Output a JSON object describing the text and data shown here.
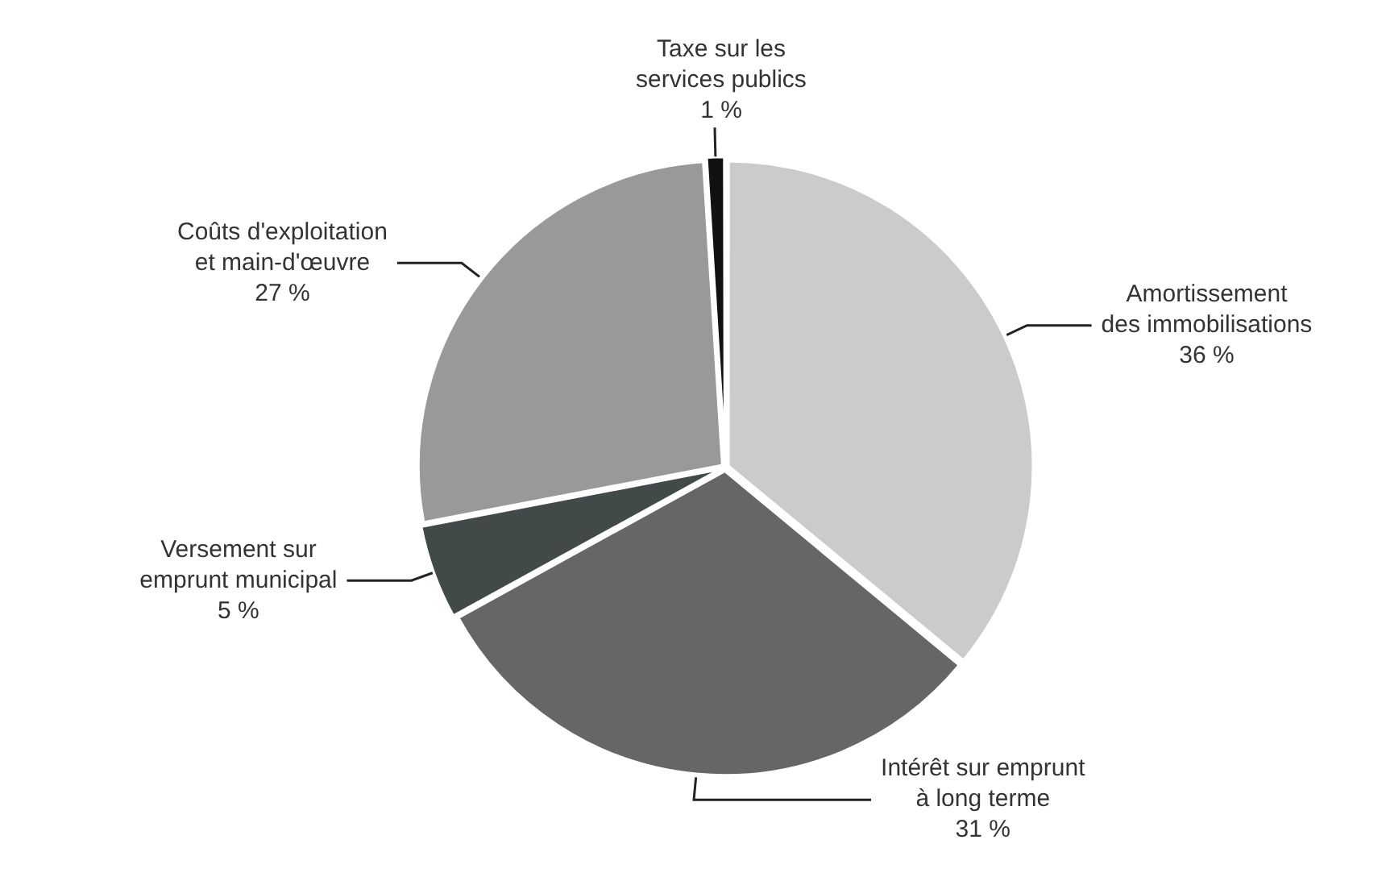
{
  "chart_data": {
    "type": "pie",
    "categories": [
      "Amortissement\ndes immobilisations",
      "Intérêt sur emprunt\nà long terme",
      "Versement sur\nemprunt municipal",
      "Coûts d'exploitation\net main-d'œuvre",
      "Taxe sur les\nservices publics"
    ],
    "values": [
      36,
      31,
      5,
      27,
      1
    ],
    "colors": [
      "#cbcbcb",
      "#666666",
      "#414949",
      "#999999",
      "#111111"
    ],
    "value_labels": [
      "36 %",
      "31 %",
      "5 %",
      "27 %",
      "1 %"
    ],
    "legend": false
  }
}
